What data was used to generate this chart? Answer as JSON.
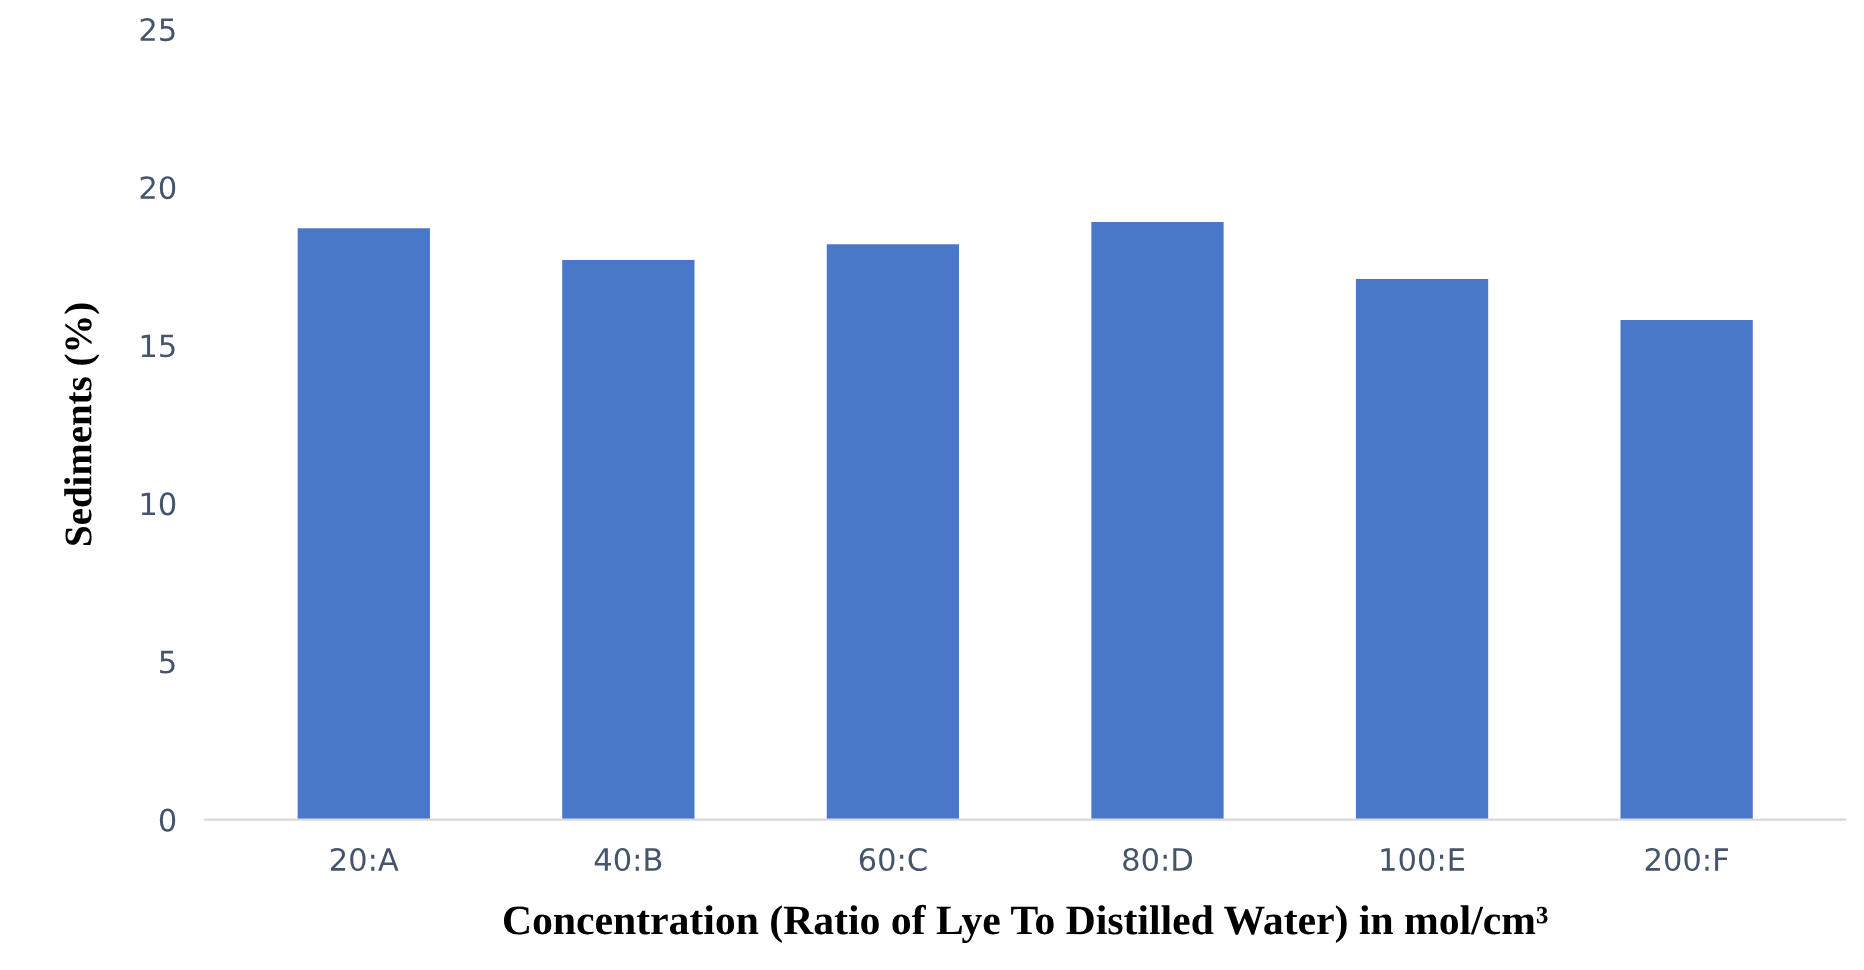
{
  "chart_data": {
    "type": "bar",
    "xlabel": "Concentration (Ratio of Lye To Distilled Water) in mol/cm³",
    "ylabel": "Sediments (%)",
    "categories": [
      "20:A",
      "40:B",
      "60:C",
      "80:D",
      "100:E",
      "200:F"
    ],
    "values": [
      18.7,
      17.7,
      18.2,
      18.9,
      17.1,
      15.8
    ],
    "color": "#4a78c8",
    "ylim": [
      0,
      25
    ],
    "yticks": [
      0,
      5,
      10,
      15,
      20,
      25
    ],
    "grid": false,
    "legend": false
  }
}
